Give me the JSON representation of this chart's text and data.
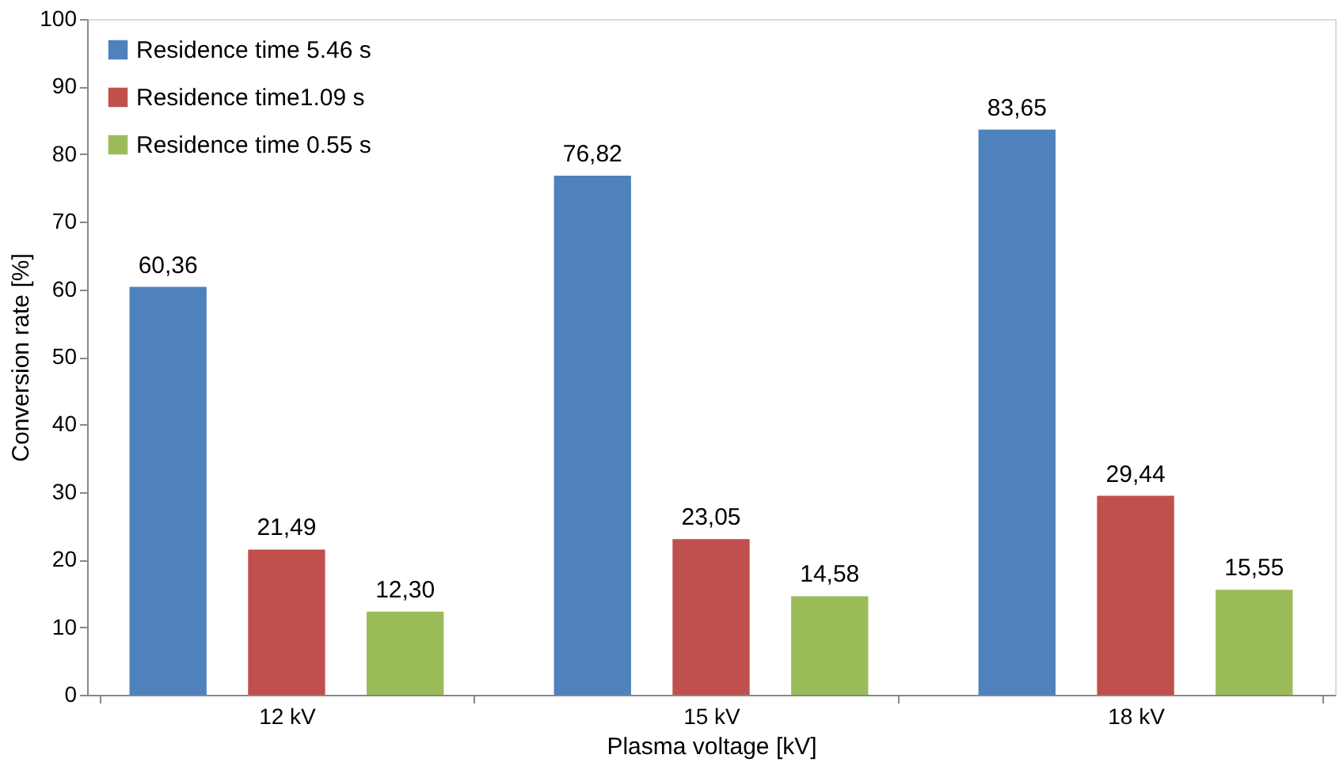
{
  "chart_data": {
    "type": "bar",
    "xlabel": "Plasma voltage [kV]",
    "ylabel": "Conversion rate [%]",
    "categories": [
      "12 kV",
      "15 kV",
      "18 kV"
    ],
    "series": [
      {
        "name": "Residence time 5.46 s",
        "color": "#4f81bd",
        "values": [
          60.36,
          76.82,
          83.65
        ],
        "value_labels": [
          "60,36",
          "76,82",
          "83,65"
        ]
      },
      {
        "name": "Residence time1.09 s",
        "color": "#c0504d",
        "values": [
          21.49,
          23.05,
          29.44
        ],
        "value_labels": [
          "21,49",
          "23,05",
          "29,44"
        ]
      },
      {
        "name": "Residence time 0.55 s",
        "color": "#9bbb59",
        "values": [
          12.3,
          14.58,
          15.55
        ],
        "value_labels": [
          "12,30",
          "14,58",
          "15,55"
        ]
      }
    ],
    "ylim": [
      0,
      100
    ],
    "yticks": [
      0,
      10,
      20,
      30,
      40,
      50,
      60,
      70,
      80,
      90,
      100
    ],
    "legend": "top left",
    "grid": false
  }
}
